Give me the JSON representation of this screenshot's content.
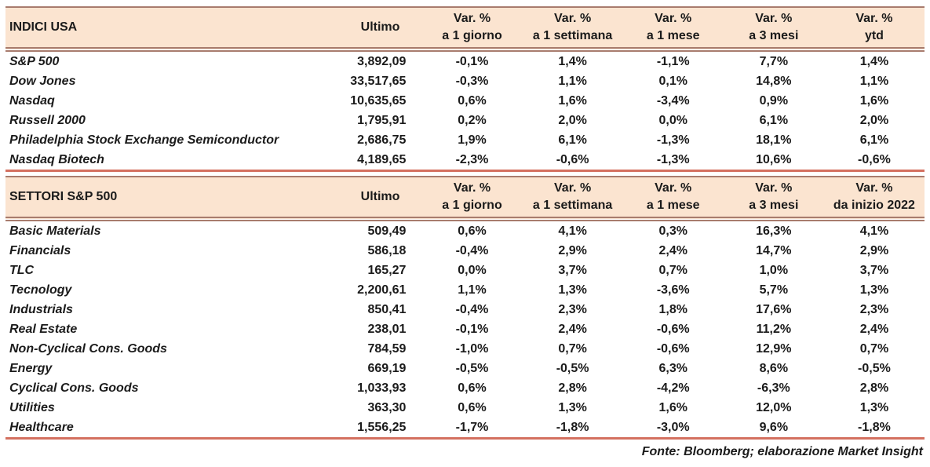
{
  "colors": {
    "header_bg": "#fbe4d0",
    "line_brown": "#a87c6e",
    "line_red": "#d4705f",
    "text": "#1b1b1b"
  },
  "footer": {
    "text": "Fonte: Bloomberg; elaborazione Market Insight"
  },
  "tables": [
    {
      "title": "INDICI USA",
      "ultimo_label": "Ultimo",
      "columns": [
        {
          "line1": "Var. %",
          "line2": "a 1 giorno"
        },
        {
          "line1": "Var. %",
          "line2": "a 1 settimana"
        },
        {
          "line1": "Var. %",
          "line2": "a 1 mese"
        },
        {
          "line1": "Var. %",
          "line2": "a 3 mesi"
        },
        {
          "line1": "Var. %",
          "line2": "ytd"
        }
      ],
      "rows": [
        {
          "name": "S&P 500",
          "ultimo": "3,892,09",
          "values": [
            "-0,1%",
            "1,4%",
            "-1,1%",
            "7,7%",
            "1,4%"
          ]
        },
        {
          "name": "Dow Jones",
          "ultimo": "33,517,65",
          "values": [
            "-0,3%",
            "1,1%",
            "0,1%",
            "14,8%",
            "1,1%"
          ]
        },
        {
          "name": "Nasdaq",
          "ultimo": "10,635,65",
          "values": [
            "0,6%",
            "1,6%",
            "-3,4%",
            "0,9%",
            "1,6%"
          ]
        },
        {
          "name": "Russell 2000",
          "ultimo": "1,795,91",
          "values": [
            "0,2%",
            "2,0%",
            "0,0%",
            "6,1%",
            "2,0%"
          ]
        },
        {
          "name": "Philadelphia Stock Exchange Semiconductor",
          "ultimo": "2,686,75",
          "values": [
            "1,9%",
            "6,1%",
            "-1,3%",
            "18,1%",
            "6,1%"
          ]
        },
        {
          "name": "Nasdaq Biotech",
          "ultimo": "4,189,65",
          "values": [
            "-2,3%",
            "-0,6%",
            "-1,3%",
            "10,6%",
            "-0,6%"
          ]
        }
      ]
    },
    {
      "title": "SETTORI S&P 500",
      "ultimo_label": "Ultimo",
      "columns": [
        {
          "line1": "Var. %",
          "line2": "a 1 giorno"
        },
        {
          "line1": "Var. %",
          "line2": "a 1 settimana"
        },
        {
          "line1": "Var. %",
          "line2": "a 1 mese"
        },
        {
          "line1": "Var. %",
          "line2": "a 3 mesi"
        },
        {
          "line1": "Var. %",
          "line2": "da inizio 2022"
        }
      ],
      "rows": [
        {
          "name": "Basic Materials",
          "ultimo": "509,49",
          "values": [
            "0,6%",
            "4,1%",
            "0,3%",
            "16,3%",
            "4,1%"
          ]
        },
        {
          "name": "Financials",
          "ultimo": "586,18",
          "values": [
            "-0,4%",
            "2,9%",
            "2,4%",
            "14,7%",
            "2,9%"
          ]
        },
        {
          "name": "TLC",
          "ultimo": "165,27",
          "values": [
            "0,0%",
            "3,7%",
            "0,7%",
            "1,0%",
            "3,7%"
          ]
        },
        {
          "name": "Tecnology",
          "ultimo": "2,200,61",
          "values": [
            "1,1%",
            "1,3%",
            "-3,6%",
            "5,7%",
            "1,3%"
          ]
        },
        {
          "name": "Industrials",
          "ultimo": "850,41",
          "values": [
            "-0,4%",
            "2,3%",
            "1,8%",
            "17,6%",
            "2,3%"
          ]
        },
        {
          "name": "Real Estate",
          "ultimo": "238,01",
          "values": [
            "-0,1%",
            "2,4%",
            "-0,6%",
            "11,2%",
            "2,4%"
          ]
        },
        {
          "name": "Non-Cyclical Cons. Goods",
          "ultimo": "784,59",
          "values": [
            "-1,0%",
            "0,7%",
            "-0,6%",
            "12,9%",
            "0,7%"
          ]
        },
        {
          "name": "Energy",
          "ultimo": "669,19",
          "values": [
            "-0,5%",
            "-0,5%",
            "6,3%",
            "8,6%",
            "-0,5%"
          ]
        },
        {
          "name": "Cyclical Cons. Goods",
          "ultimo": "1,033,93",
          "values": [
            "0,6%",
            "2,8%",
            "-4,2%",
            "-6,3%",
            "2,8%"
          ]
        },
        {
          "name": "Utilities",
          "ultimo": "363,30",
          "values": [
            "0,6%",
            "1,3%",
            "1,6%",
            "12,0%",
            "1,3%"
          ]
        },
        {
          "name": "Healthcare",
          "ultimo": "1,556,25",
          "values": [
            "-1,7%",
            "-1,8%",
            "-3,0%",
            "9,6%",
            "-1,8%"
          ]
        }
      ]
    }
  ]
}
